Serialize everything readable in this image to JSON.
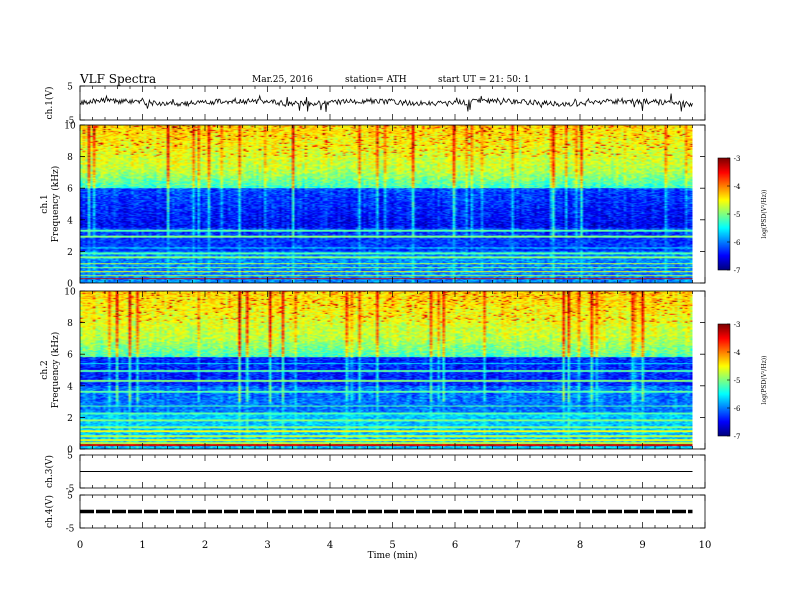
{
  "header": {
    "title": "VLF  Spectra",
    "date": "Mar.25, 2016",
    "station": "station= ATH",
    "start": "start  UT  =   21: 50: 1"
  },
  "chart_data": [
    {
      "type": "line",
      "name": "ch1-waveform",
      "ylabel": "ch.1(V)",
      "ylim": [
        -5,
        5
      ],
      "y_ticks": [
        "5",
        "-5"
      ],
      "xlim": [
        0,
        10
      ],
      "x_data_max": 9.8
    },
    {
      "type": "heatmap",
      "name": "ch1-spectrogram",
      "ylabel": [
        "ch.1",
        "Frequency  (kHz)"
      ],
      "ylim": [
        0,
        10
      ],
      "y_ticks": [
        "0",
        "2",
        "4",
        "6",
        "8",
        "10"
      ],
      "xlim": [
        0,
        10
      ],
      "x_data_max": 9.8,
      "colorbar": {
        "label": "log(PSD(V²/Hz))",
        "range": [
          -7,
          -3
        ],
        "ticks": [
          "-3",
          "-4",
          "-5",
          "-6",
          "-7"
        ]
      }
    },
    {
      "type": "heatmap",
      "name": "ch2-spectrogram",
      "ylabel": [
        "ch.2",
        "Frequency  (kHz)"
      ],
      "ylim": [
        0,
        10
      ],
      "y_ticks": [
        "0",
        "2",
        "4",
        "6",
        "8",
        "10"
      ],
      "xlim": [
        0,
        10
      ],
      "x_data_max": 9.8,
      "colorbar": {
        "label": "log(PSD(V²/Hz))",
        "range": [
          -7,
          -3
        ],
        "ticks": [
          "-3",
          "-4",
          "-5",
          "-6",
          "-7"
        ]
      }
    },
    {
      "type": "line",
      "name": "ch3-waveform",
      "ylabel": "ch.3(V)",
      "ylim": [
        -5,
        5
      ],
      "y_ticks": [
        "5",
        "-5"
      ],
      "xlim": [
        0,
        10
      ],
      "x_data_max": 9.8,
      "values": [
        [
          0,
          0
        ],
        [
          9.8,
          0
        ]
      ]
    },
    {
      "type": "line",
      "name": "ch4-waveform",
      "ylabel": "ch.4(V)",
      "ylim": [
        -5,
        5
      ],
      "y_ticks": [
        "5",
        "-5"
      ],
      "xlim": [
        0,
        10
      ],
      "x_data_max": 9.8,
      "values": [
        [
          0,
          0
        ],
        [
          9.8,
          0
        ]
      ]
    }
  ],
  "x_axis": {
    "label": "Time  (min)",
    "ticks": [
      "0",
      "1",
      "2",
      "3",
      "4",
      "5",
      "6",
      "7",
      "8",
      "9",
      "10"
    ]
  }
}
